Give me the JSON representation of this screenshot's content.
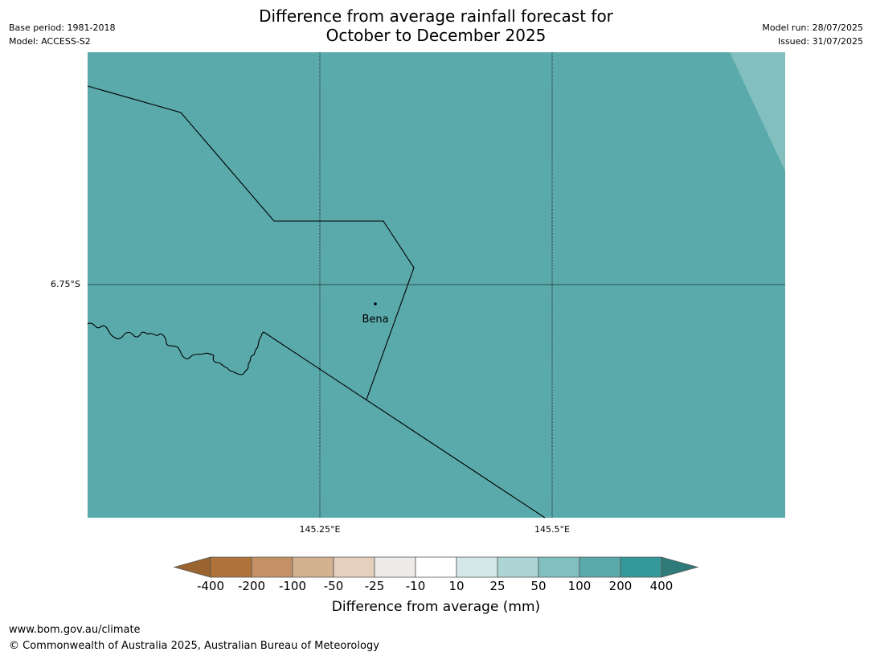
{
  "title_line1": "Difference from average rainfall forecast for",
  "title_line2": "October to December 2025",
  "meta_left": {
    "base_period": "Base period: 1981-2018",
    "model": "Model: ACCESS-S2"
  },
  "meta_right": {
    "model_run": "Model run: 28/07/2025",
    "issued": "Issued: 31/07/2025"
  },
  "map": {
    "background_color": "#5aaaab",
    "corner_color": "#82bfbf",
    "lat_label": "6.75°S",
    "lon_labels": [
      "145.25°E",
      "145.5°E"
    ],
    "place_name": "Bena"
  },
  "colorbar": {
    "ticks": [
      "-400",
      "-200",
      "-100",
      "-50",
      "-25",
      "-10",
      "10",
      "25",
      "50",
      "100",
      "200",
      "400"
    ],
    "colors": [
      "#9a6430",
      "#b0743a",
      "#c49266",
      "#d4b190",
      "#e4d0bd",
      "#efebe8",
      "#ffffff",
      "#d5e8e8",
      "#acd4d4",
      "#82bfbf",
      "#5aaaab",
      "#35999a",
      "#2e7b79"
    ],
    "label": "Difference from average (mm)"
  },
  "footer": {
    "url": "www.bom.gov.au/climate",
    "copyright": "© Commonwealth of Australia 2025, Australian Bureau of Meteorology"
  }
}
